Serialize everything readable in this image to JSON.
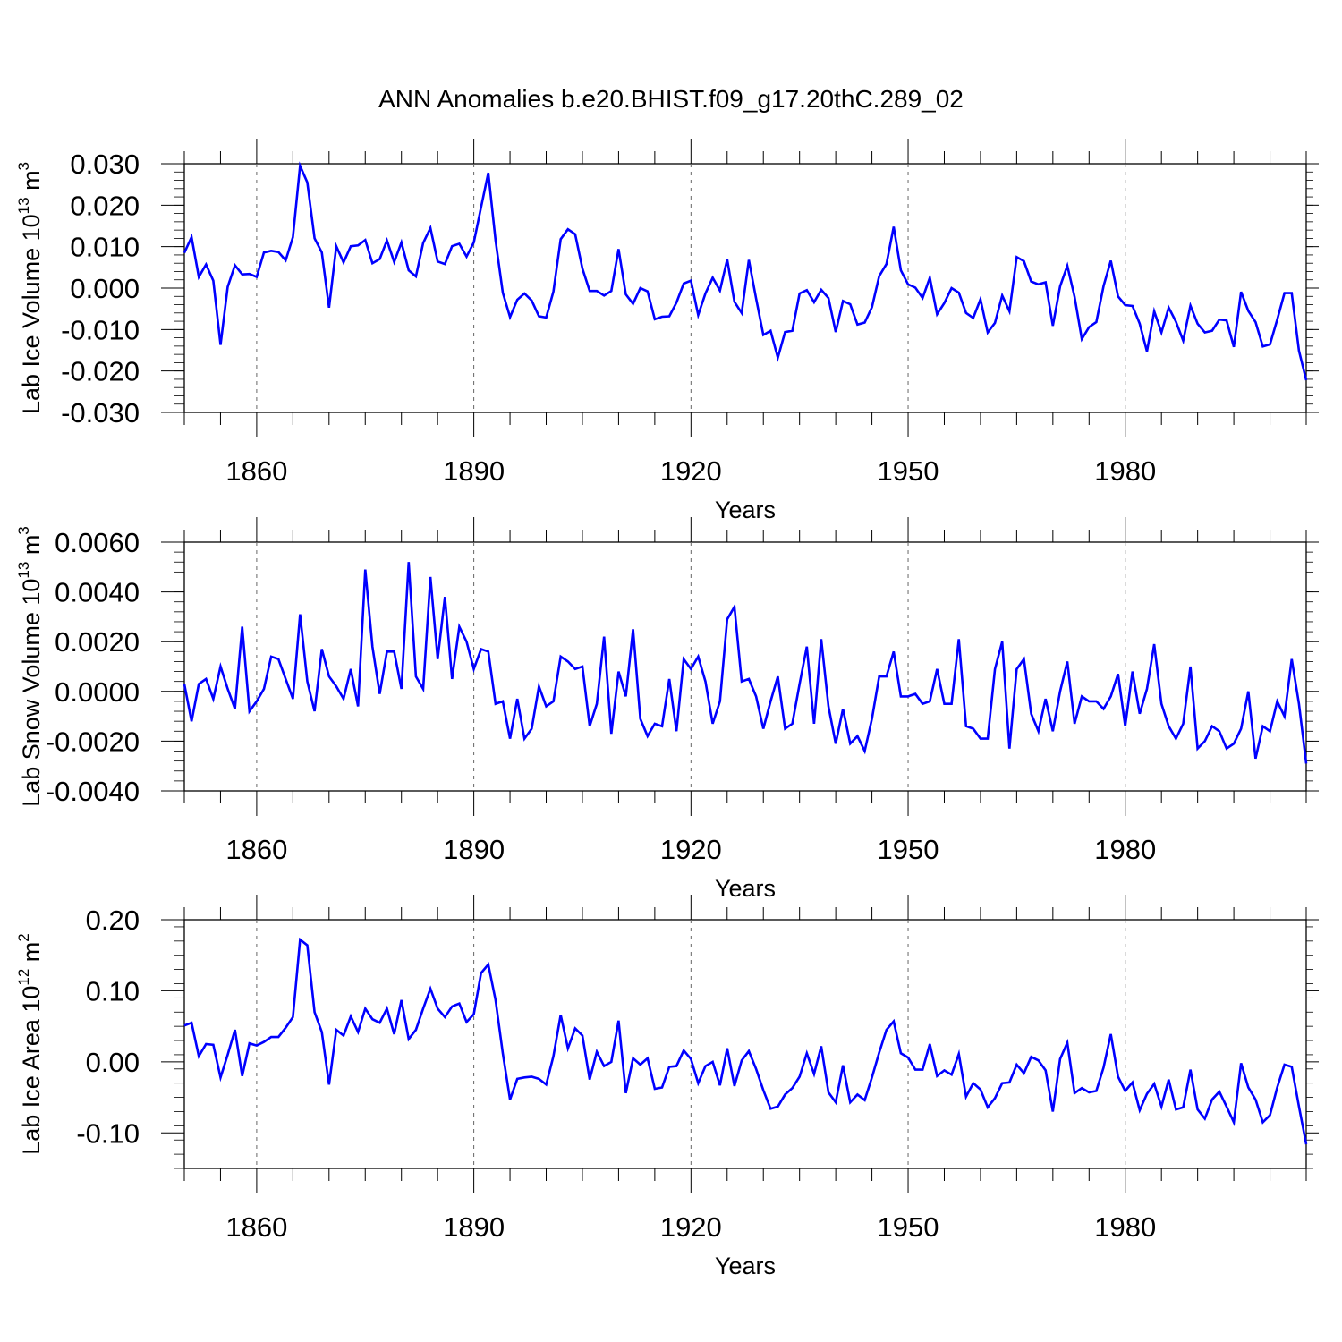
{
  "title": "ANN Anomalies b.e20.BHIST.f09_g17.20thC.289_02",
  "line_color": "#0000ff",
  "chart_data": [
    {
      "type": "line",
      "xlabel": "Years",
      "ylabel": {
        "main": "Lab Ice Volume 10",
        "exp": "13",
        "unit": " m",
        "unit_exp": "3"
      },
      "xlim": [
        1850,
        2005
      ],
      "ylim": [
        -0.03,
        0.03
      ],
      "yticks": [
        -0.03,
        -0.02,
        -0.01,
        0.0,
        0.01,
        0.02,
        0.03
      ],
      "ytick_labels": [
        "-0.030",
        "-0.020",
        "-0.010",
        "0.000",
        "0.010",
        "0.020",
        "0.030"
      ],
      "xticks": [
        1860,
        1890,
        1920,
        1950,
        1980
      ],
      "xtick_labels": [
        "1860",
        "1890",
        "1920",
        "1950",
        "1980"
      ],
      "x_start": 1850,
      "values": [
        0.0085,
        0.0123,
        0.0027,
        0.0057,
        0.0018,
        -0.0137,
        0.0003,
        0.0055,
        0.0033,
        0.0034,
        0.0027,
        0.0086,
        0.009,
        0.0087,
        0.0067,
        0.0123,
        0.0295,
        0.0255,
        0.012,
        0.0086,
        -0.0047,
        0.0101,
        0.0062,
        0.0101,
        0.0103,
        0.0116,
        0.006,
        0.007,
        0.0115,
        0.0063,
        0.011,
        0.0043,
        0.0028,
        0.0109,
        0.0145,
        0.0064,
        0.0058,
        0.0101,
        0.0107,
        0.0076,
        0.011,
        0.0195,
        0.0278,
        0.0115,
        -0.0011,
        -0.007,
        -0.0028,
        -0.0013,
        -0.003,
        -0.0068,
        -0.0071,
        -0.0008,
        0.0118,
        0.0142,
        0.013,
        0.0047,
        -0.0007,
        -0.0007,
        -0.0018,
        -0.0007,
        0.0094,
        -0.0015,
        -0.0038,
        0.0,
        -0.0008,
        -0.0075,
        -0.0069,
        -0.0068,
        -0.0035,
        0.0011,
        0.0018,
        -0.0065,
        -0.0013,
        0.0025,
        -0.0006,
        0.0069,
        -0.0033,
        -0.006,
        0.0068,
        -0.0025,
        -0.0113,
        -0.0103,
        -0.0168,
        -0.0106,
        -0.0103,
        -0.0013,
        -0.0005,
        -0.0034,
        -0.0004,
        -0.0024,
        -0.0106,
        -0.0031,
        -0.0039,
        -0.0088,
        -0.0083,
        -0.0046,
        0.0029,
        0.0058,
        0.0148,
        0.0043,
        0.0009,
        0.0001,
        -0.0024,
        0.0025,
        -0.0063,
        -0.0036,
        0.0,
        -0.0011,
        -0.006,
        -0.0072,
        -0.0027,
        -0.0107,
        -0.0084,
        -0.0018,
        -0.0056,
        0.0075,
        0.0065,
        0.0016,
        0.0009,
        0.0014,
        -0.0091,
        0.0004,
        0.0054,
        -0.0021,
        -0.0123,
        -0.0094,
        -0.0082,
        0.0005,
        0.0066,
        -0.002,
        -0.0041,
        -0.0043,
        -0.0086,
        -0.0153,
        -0.0056,
        -0.0107,
        -0.0047,
        -0.0081,
        -0.0127,
        -0.0042,
        -0.0086,
        -0.0107,
        -0.0103,
        -0.0076,
        -0.0078,
        -0.0142,
        -0.0009,
        -0.0055,
        -0.0082,
        -0.0141,
        -0.0136,
        -0.0076,
        -0.0012,
        -0.0012,
        -0.0151,
        -0.0222
      ]
    },
    {
      "type": "line",
      "xlabel": "Years",
      "ylabel": {
        "main": "Lab Snow Volume 10",
        "exp": "13",
        "unit": " m",
        "unit_exp": "3"
      },
      "xlim": [
        1850,
        2005
      ],
      "ylim": [
        -0.004,
        0.006
      ],
      "yticks": [
        -0.004,
        -0.002,
        0.0,
        0.002,
        0.004,
        0.006
      ],
      "ytick_labels": [
        "-0.0040",
        "-0.0020",
        "0.0000",
        "0.0020",
        "0.0040",
        "0.0060"
      ],
      "xticks": [
        1860,
        1890,
        1920,
        1950,
        1980
      ],
      "xtick_labels": [
        "1860",
        "1890",
        "1920",
        "1950",
        "1980"
      ],
      "x_start": 1850,
      "values": [
        0.0003,
        -0.0012,
        0.0003,
        0.0005,
        -0.0003,
        0.001,
        0.0001,
        -0.0007,
        0.0026,
        -0.0008,
        -0.0004,
        0.0001,
        0.0014,
        0.0013,
        0.0005,
        -0.0003,
        0.0031,
        0.0004,
        -0.0008,
        0.0017,
        0.0006,
        0.0002,
        -0.0003,
        0.0009,
        -0.0006,
        0.0049,
        0.0018,
        -0.0001,
        0.0016,
        0.0016,
        0.0001,
        0.0052,
        0.0006,
        0.0001,
        0.0046,
        0.0013,
        0.0038,
        0.0005,
        0.0026,
        0.002,
        0.0009,
        0.0017,
        0.0016,
        -0.0005,
        -0.0004,
        -0.0019,
        -0.0003,
        -0.0019,
        -0.0015,
        0.0002,
        -0.0006,
        -0.0004,
        0.0014,
        0.0012,
        0.0009,
        0.001,
        -0.0014,
        -0.0005,
        0.0022,
        -0.0017,
        0.0008,
        -0.0002,
        0.0025,
        -0.0011,
        -0.0018,
        -0.0013,
        -0.0014,
        0.0005,
        -0.0016,
        0.0013,
        0.0009,
        0.0014,
        0.0004,
        -0.0013,
        -0.0004,
        0.0029,
        0.0034,
        0.0004,
        0.0005,
        -0.0002,
        -0.0015,
        -0.0004,
        0.0006,
        -0.0015,
        -0.0013,
        0.0003,
        0.0018,
        -0.0013,
        0.0021,
        -0.0006,
        -0.0021,
        -0.0007,
        -0.0021,
        -0.0018,
        -0.0024,
        -0.0011,
        0.0006,
        0.0006,
        0.0016,
        -0.0002,
        -0.0002,
        -0.0001,
        -0.0005,
        -0.0004,
        0.0009,
        -0.0005,
        -0.0005,
        0.0021,
        -0.0014,
        -0.0015,
        -0.0019,
        -0.0019,
        0.0009,
        0.002,
        -0.0023,
        0.0009,
        0.0013,
        -0.0009,
        -0.0016,
        -0.0003,
        -0.0016,
        0.0,
        0.0012,
        -0.0013,
        -0.0002,
        -0.0004,
        -0.0004,
        -0.0007,
        -0.0002,
        0.0007,
        -0.0014,
        0.0008,
        -0.0009,
        0.0001,
        0.0019,
        -0.0005,
        -0.0014,
        -0.0019,
        -0.0013,
        0.001,
        -0.0023,
        -0.002,
        -0.0014,
        -0.0016,
        -0.0023,
        -0.0021,
        -0.0015,
        0.0,
        -0.0027,
        -0.0014,
        -0.0016,
        -0.0004,
        -0.001,
        0.0013,
        -0.0005,
        -0.0029
      ]
    },
    {
      "type": "line",
      "xlabel": "Years",
      "ylabel": {
        "main": "Lab Ice Area 10",
        "exp": "12",
        "unit": " m",
        "unit_exp": "2"
      },
      "xlim": [
        1850,
        2005
      ],
      "ylim": [
        -0.15,
        0.2
      ],
      "yticks": [
        -0.1,
        0.0,
        0.1,
        0.2
      ],
      "ytick_labels": [
        "-0.10",
        "0.00",
        "0.10",
        "0.20"
      ],
      "xticks": [
        1860,
        1890,
        1920,
        1950,
        1980
      ],
      "xtick_labels": [
        "1860",
        "1890",
        "1920",
        "1950",
        "1980"
      ],
      "x_start": 1850,
      "values": [
        0.051,
        0.055,
        0.008,
        0.025,
        0.024,
        -0.022,
        0.01,
        0.045,
        -0.02,
        0.026,
        0.023,
        0.028,
        0.035,
        0.035,
        0.048,
        0.063,
        0.172,
        0.164,
        0.07,
        0.042,
        -0.032,
        0.045,
        0.037,
        0.064,
        0.042,
        0.075,
        0.06,
        0.055,
        0.075,
        0.039,
        0.087,
        0.032,
        0.045,
        0.075,
        0.103,
        0.075,
        0.063,
        0.078,
        0.082,
        0.056,
        0.067,
        0.125,
        0.137,
        0.087,
        0.012,
        -0.053,
        -0.024,
        -0.022,
        -0.021,
        -0.024,
        -0.032,
        0.008,
        0.066,
        0.019,
        0.047,
        0.037,
        -0.025,
        0.014,
        -0.006,
        0.0,
        0.058,
        -0.044,
        0.005,
        -0.004,
        0.005,
        -0.038,
        -0.036,
        -0.007,
        -0.006,
        0.016,
        0.004,
        -0.03,
        -0.006,
        0.0,
        -0.033,
        0.019,
        -0.034,
        0.002,
        0.015,
        -0.01,
        -0.04,
        -0.066,
        -0.063,
        -0.046,
        -0.037,
        -0.021,
        0.012,
        -0.017,
        0.022,
        -0.043,
        -0.057,
        -0.005,
        -0.057,
        -0.046,
        -0.054,
        -0.022,
        0.013,
        0.045,
        0.057,
        0.012,
        0.006,
        -0.011,
        -0.011,
        0.025,
        -0.02,
        -0.012,
        -0.018,
        0.011,
        -0.049,
        -0.03,
        -0.039,
        -0.064,
        -0.051,
        -0.03,
        -0.029,
        -0.004,
        -0.016,
        0.007,
        0.002,
        -0.012,
        -0.07,
        0.004,
        0.027,
        -0.044,
        -0.037,
        -0.043,
        -0.041,
        -0.008,
        0.039,
        -0.021,
        -0.041,
        -0.029,
        -0.068,
        -0.045,
        -0.031,
        -0.063,
        -0.025,
        -0.067,
        -0.064,
        -0.011,
        -0.067,
        -0.08,
        -0.053,
        -0.042,
        -0.063,
        -0.085,
        -0.002,
        -0.036,
        -0.053,
        -0.085,
        -0.075,
        -0.036,
        -0.004,
        -0.007,
        -0.063,
        -0.116
      ]
    }
  ]
}
